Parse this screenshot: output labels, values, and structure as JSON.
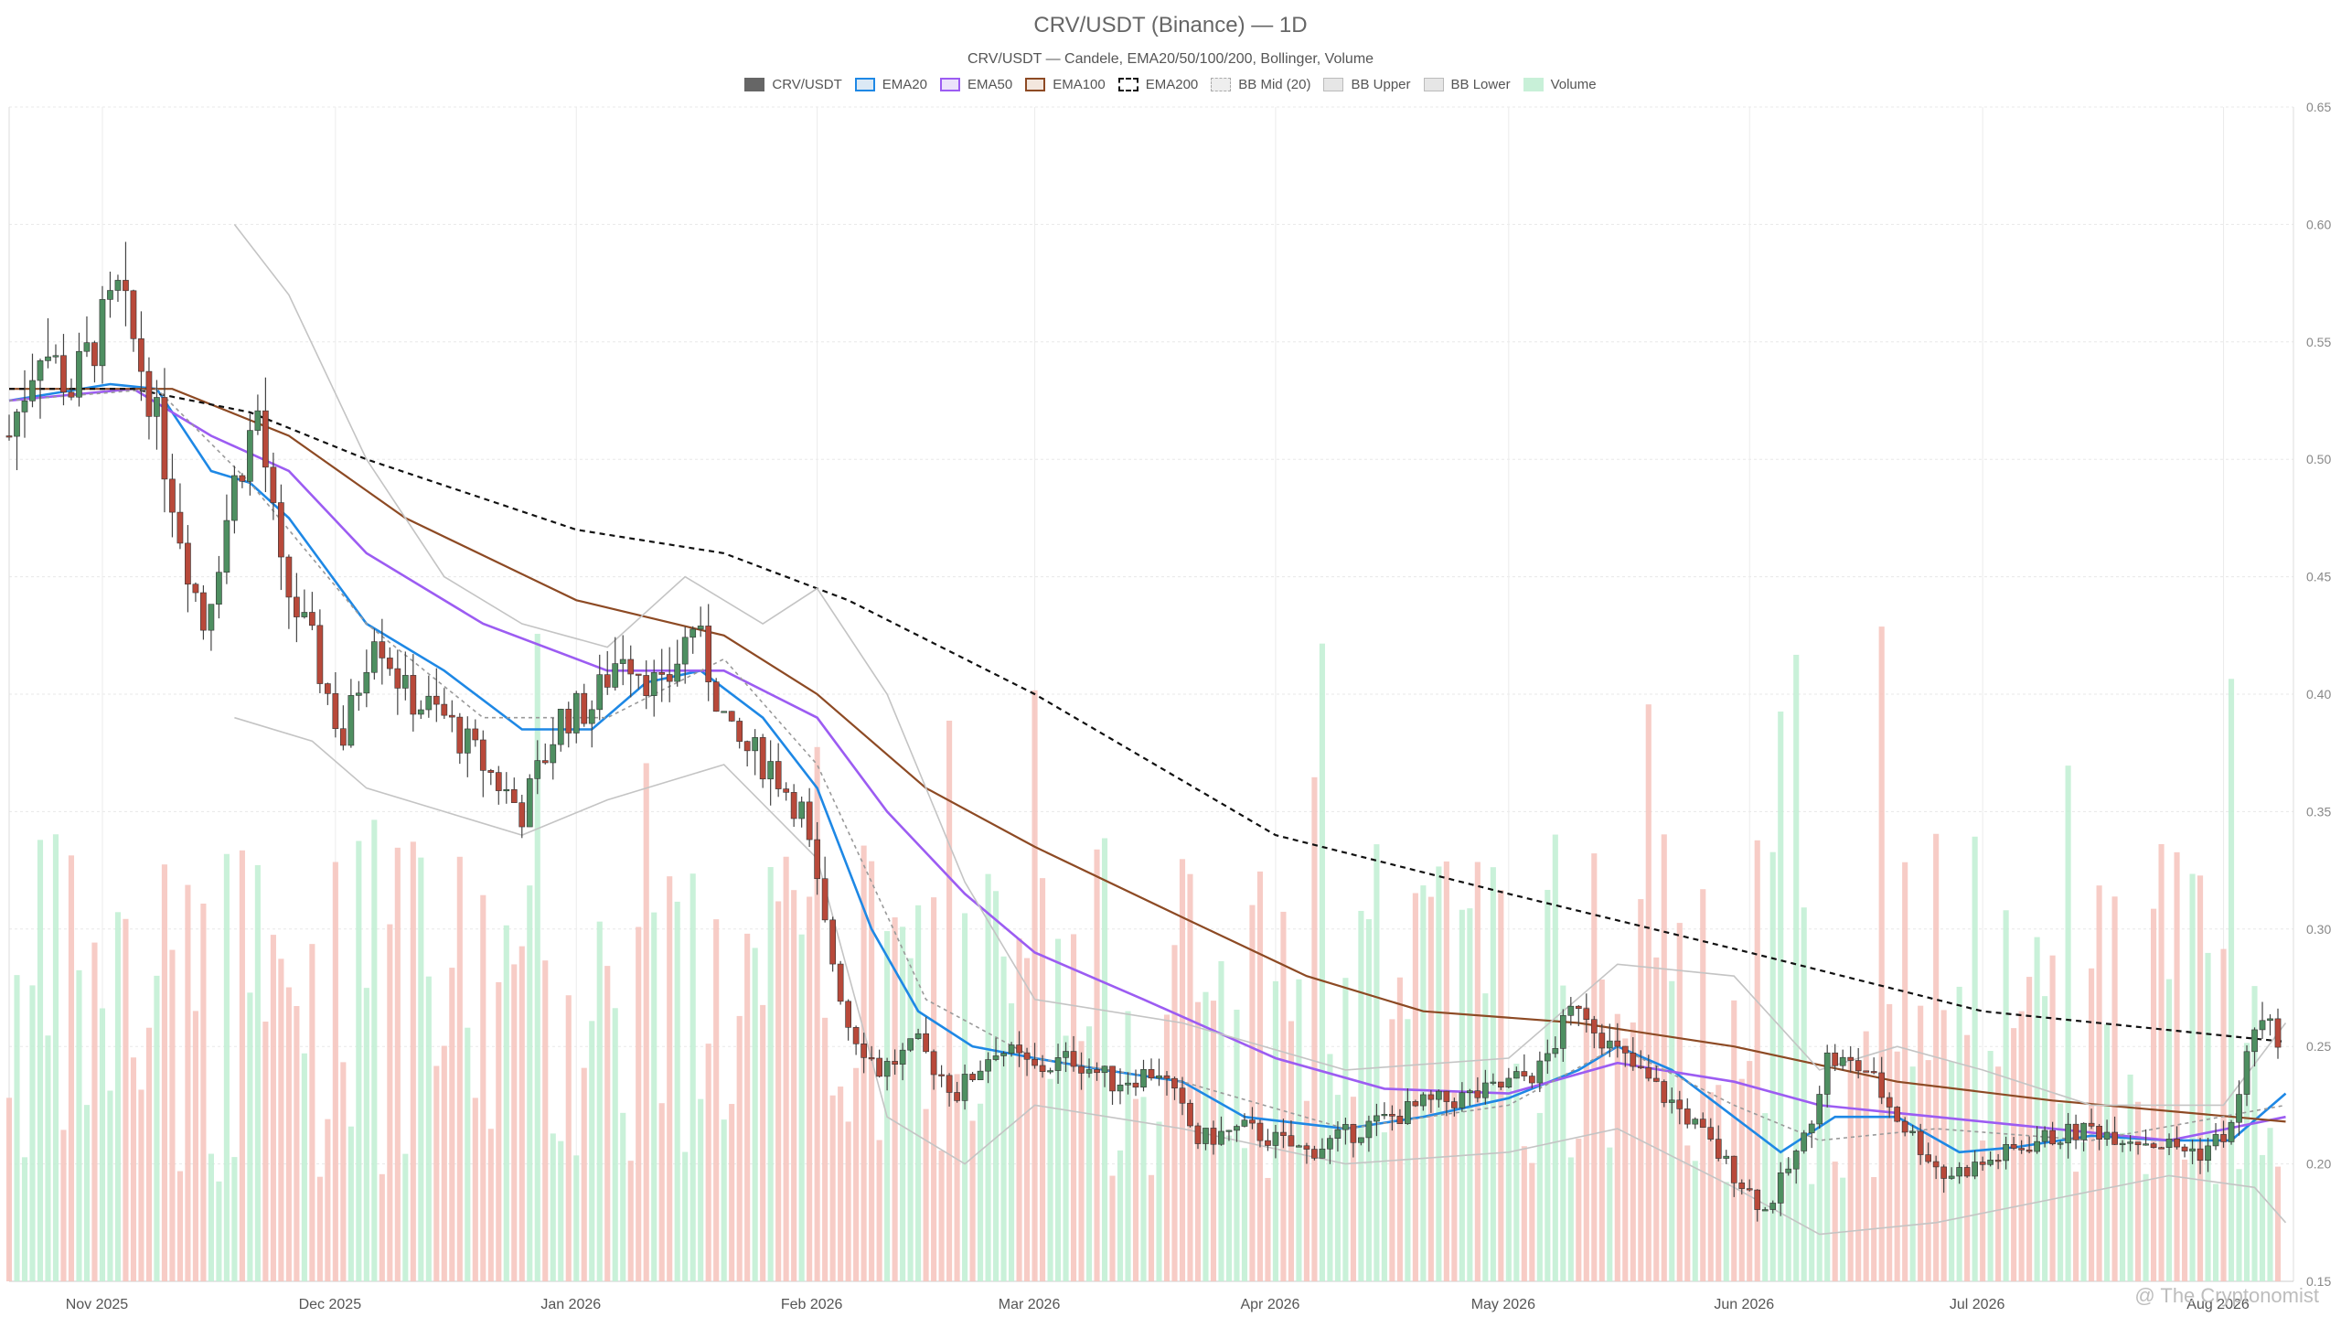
{
  "title": "CRV/USDT (Binance) — 1D",
  "subtitle": "CRV/USDT — Candele, EMA20/50/100/200, Bollinger, Volume",
  "watermark": "@ The Cryptonomist",
  "legend": [
    {
      "label": "CRV/USDT",
      "color": "#666666",
      "style": "solid-fill"
    },
    {
      "label": "EMA20",
      "color": "#1e88e5",
      "style": "outline"
    },
    {
      "label": "EMA50",
      "color": "#9c5cf2",
      "style": "outline"
    },
    {
      "label": "EMA100",
      "color": "#8d4a24",
      "style": "outline"
    },
    {
      "label": "EMA200",
      "color": "#111111",
      "style": "dashed"
    },
    {
      "label": "BB Mid (20)",
      "color": "#aaaaaa",
      "style": "dashed-gray"
    },
    {
      "label": "BB Upper",
      "color": "#bbbbbb",
      "style": "gray"
    },
    {
      "label": "BB Lower",
      "color": "#bbbbbb",
      "style": "gray"
    },
    {
      "label": "Volume",
      "color": "#c8f0d8",
      "style": "green-fill"
    }
  ],
  "chart_data": {
    "type": "candlestick",
    "x_range": [
      "2025-10-20",
      "2026-08-10"
    ],
    "x_ticks": [
      {
        "date": "2025-11-01",
        "label": "Nov 2025"
      },
      {
        "date": "2025-12-01",
        "label": "Dec 2025"
      },
      {
        "date": "2026-01-01",
        "label": "Jan 2026"
      },
      {
        "date": "2026-02-01",
        "label": "Feb 2026"
      },
      {
        "date": "2026-03-01",
        "label": "Mar 2026"
      },
      {
        "date": "2026-04-01",
        "label": "Apr 2026"
      },
      {
        "date": "2026-05-01",
        "label": "May 2026"
      },
      {
        "date": "2026-06-01",
        "label": "Jun 2026"
      },
      {
        "date": "2026-07-01",
        "label": "Jul 2026"
      },
      {
        "date": "2026-08-01",
        "label": "Aug 2026"
      }
    ],
    "ylim": [
      0.15,
      0.65
    ],
    "y_ticks": [
      "0.15",
      "0.20",
      "0.25",
      "0.30",
      "0.35",
      "0.40",
      "0.45",
      "0.50",
      "0.55",
      "0.60",
      "0.65"
    ],
    "y_axis_side": "right",
    "grid": true,
    "colors": {
      "up": "#4e8f61",
      "down": "#b8493a",
      "vol_up": "#bfeed2",
      "vol_down": "#f6c3bc"
    },
    "close_path": [
      [
        "2025-10-20",
        0.51
      ],
      [
        "2025-10-24",
        0.55
      ],
      [
        "2025-10-28",
        0.53
      ],
      [
        "2025-11-03",
        0.57
      ],
      [
        "2025-11-07",
        0.53
      ],
      [
        "2025-11-11",
        0.47
      ],
      [
        "2025-11-14",
        0.43
      ],
      [
        "2025-11-18",
        0.49
      ],
      [
        "2025-11-21",
        0.52
      ],
      [
        "2025-11-24",
        0.45
      ],
      [
        "2025-11-28",
        0.42
      ],
      [
        "2025-12-02",
        0.38
      ],
      [
        "2025-12-06",
        0.43
      ],
      [
        "2025-12-10",
        0.4
      ],
      [
        "2025-12-15",
        0.39
      ],
      [
        "2025-12-20",
        0.37
      ],
      [
        "2025-12-25",
        0.35
      ],
      [
        "2025-12-30",
        0.39
      ],
      [
        "2026-01-03",
        0.395
      ],
      [
        "2026-01-07",
        0.42
      ],
      [
        "2026-01-12",
        0.4
      ],
      [
        "2026-01-16",
        0.43
      ],
      [
        "2026-01-21",
        0.38
      ],
      [
        "2026-01-26",
        0.37
      ],
      [
        "2026-01-30",
        0.35
      ],
      [
        "2026-02-02",
        0.3
      ],
      [
        "2026-02-05",
        0.26
      ],
      [
        "2026-02-09",
        0.24
      ],
      [
        "2026-02-14",
        0.25
      ],
      [
        "2026-02-19",
        0.23
      ],
      [
        "2026-02-24",
        0.25
      ],
      [
        "2026-03-01",
        0.24
      ],
      [
        "2026-03-06",
        0.245
      ],
      [
        "2026-03-11",
        0.235
      ],
      [
        "2026-03-17",
        0.24
      ],
      [
        "2026-03-22",
        0.21
      ],
      [
        "2026-03-28",
        0.215
      ],
      [
        "2026-04-05",
        0.205
      ],
      [
        "2026-04-12",
        0.215
      ],
      [
        "2026-04-20",
        0.225
      ],
      [
        "2026-04-28",
        0.23
      ],
      [
        "2026-05-05",
        0.24
      ],
      [
        "2026-05-10",
        0.27
      ],
      [
        "2026-05-14",
        0.25
      ],
      [
        "2026-05-19",
        0.235
      ],
      [
        "2026-05-24",
        0.22
      ],
      [
        "2026-05-29",
        0.2
      ],
      [
        "2026-06-03",
        0.18
      ],
      [
        "2026-06-08",
        0.21
      ],
      [
        "2026-06-11",
        0.245
      ],
      [
        "2026-06-16",
        0.24
      ],
      [
        "2026-06-20",
        0.22
      ],
      [
        "2026-06-26",
        0.195
      ],
      [
        "2026-07-01",
        0.2
      ],
      [
        "2026-07-08",
        0.21
      ],
      [
        "2026-07-15",
        0.215
      ],
      [
        "2026-07-22",
        0.21
      ],
      [
        "2026-07-29",
        0.205
      ],
      [
        "2026-08-02",
        0.215
      ],
      [
        "2026-08-05",
        0.26
      ],
      [
        "2026-08-08",
        0.255
      ]
    ],
    "series": [
      {
        "name": "EMA20",
        "color": "#1e88e5",
        "width": 2.6,
        "dash": "",
        "points": [
          [
            "2025-10-20",
            0.525
          ],
          [
            "2025-11-02",
            0.532
          ],
          [
            "2025-11-08",
            0.53
          ],
          [
            "2025-11-15",
            0.495
          ],
          [
            "2025-11-20",
            0.49
          ],
          [
            "2025-11-25",
            0.475
          ],
          [
            "2025-12-05",
            0.43
          ],
          [
            "2025-12-15",
            0.41
          ],
          [
            "2025-12-25",
            0.385
          ],
          [
            "2026-01-03",
            0.385
          ],
          [
            "2026-01-10",
            0.405
          ],
          [
            "2026-01-17",
            0.41
          ],
          [
            "2026-01-25",
            0.39
          ],
          [
            "2026-02-01",
            0.36
          ],
          [
            "2026-02-08",
            0.3
          ],
          [
            "2026-02-14",
            0.265
          ],
          [
            "2026-02-21",
            0.25
          ],
          [
            "2026-03-01",
            0.245
          ],
          [
            "2026-03-10",
            0.24
          ],
          [
            "2026-03-20",
            0.235
          ],
          [
            "2026-03-28",
            0.22
          ],
          [
            "2026-04-10",
            0.215
          ],
          [
            "2026-04-20",
            0.22
          ],
          [
            "2026-05-01",
            0.228
          ],
          [
            "2026-05-10",
            0.24
          ],
          [
            "2026-05-15",
            0.25
          ],
          [
            "2026-05-22",
            0.24
          ],
          [
            "2026-05-30",
            0.22
          ],
          [
            "2026-06-05",
            0.205
          ],
          [
            "2026-06-12",
            0.22
          ],
          [
            "2026-06-20",
            0.22
          ],
          [
            "2026-06-28",
            0.205
          ],
          [
            "2026-07-05",
            0.207
          ],
          [
            "2026-07-15",
            0.212
          ],
          [
            "2026-07-25",
            0.21
          ],
          [
            "2026-08-02",
            0.21
          ],
          [
            "2026-08-09",
            0.23
          ]
        ]
      },
      {
        "name": "EMA50",
        "color": "#9c5cf2",
        "width": 2.6,
        "dash": "",
        "points": [
          [
            "2025-10-20",
            0.525
          ],
          [
            "2025-11-05",
            0.53
          ],
          [
            "2025-11-15",
            0.51
          ],
          [
            "2025-11-25",
            0.495
          ],
          [
            "2025-12-05",
            0.46
          ],
          [
            "2025-12-20",
            0.43
          ],
          [
            "2026-01-05",
            0.41
          ],
          [
            "2026-01-20",
            0.41
          ],
          [
            "2026-02-01",
            0.39
          ],
          [
            "2026-02-10",
            0.35
          ],
          [
            "2026-02-20",
            0.315
          ],
          [
            "2026-03-01",
            0.29
          ],
          [
            "2026-03-15",
            0.27
          ],
          [
            "2026-04-01",
            0.245
          ],
          [
            "2026-04-15",
            0.232
          ],
          [
            "2026-05-01",
            0.23
          ],
          [
            "2026-05-15",
            0.243
          ],
          [
            "2026-05-30",
            0.235
          ],
          [
            "2026-06-10",
            0.225
          ],
          [
            "2026-06-25",
            0.22
          ],
          [
            "2026-07-10",
            0.215
          ],
          [
            "2026-07-25",
            0.21
          ],
          [
            "2026-08-09",
            0.22
          ]
        ]
      },
      {
        "name": "EMA100",
        "color": "#8d4a24",
        "width": 2.2,
        "dash": "",
        "points": [
          [
            "2025-10-20",
            0.53
          ],
          [
            "2025-11-10",
            0.53
          ],
          [
            "2025-11-25",
            0.51
          ],
          [
            "2025-12-10",
            0.475
          ],
          [
            "2026-01-01",
            0.44
          ],
          [
            "2026-01-20",
            0.425
          ],
          [
            "2026-02-01",
            0.4
          ],
          [
            "2026-02-15",
            0.36
          ],
          [
            "2026-03-01",
            0.335
          ],
          [
            "2026-03-20",
            0.305
          ],
          [
            "2026-04-05",
            0.28
          ],
          [
            "2026-04-20",
            0.265
          ],
          [
            "2026-05-10",
            0.26
          ],
          [
            "2026-05-30",
            0.25
          ],
          [
            "2026-06-20",
            0.235
          ],
          [
            "2026-07-10",
            0.227
          ],
          [
            "2026-08-09",
            0.218
          ]
        ]
      },
      {
        "name": "EMA200",
        "color": "#111111",
        "width": 2.2,
        "dash": "6,5",
        "points": [
          [
            "2025-10-20",
            0.53
          ],
          [
            "2025-11-05",
            0.53
          ],
          [
            "2025-11-20",
            0.52
          ],
          [
            "2025-12-05",
            0.5
          ],
          [
            "2026-01-01",
            0.47
          ],
          [
            "2026-01-20",
            0.46
          ],
          [
            "2026-02-05",
            0.44
          ],
          [
            "2026-03-01",
            0.4
          ],
          [
            "2026-04-01",
            0.34
          ],
          [
            "2026-05-01",
            0.315
          ],
          [
            "2026-06-01",
            0.29
          ],
          [
            "2026-07-01",
            0.265
          ],
          [
            "2026-08-09",
            0.252
          ]
        ]
      },
      {
        "name": "BB Mid (20)",
        "color": "#999999",
        "width": 1.6,
        "dash": "4,4",
        "points": [
          [
            "2025-10-20",
            0.525
          ],
          [
            "2025-11-08",
            0.53
          ],
          [
            "2025-11-20",
            0.49
          ],
          [
            "2025-12-05",
            0.43
          ],
          [
            "2025-12-20",
            0.39
          ],
          [
            "2026-01-05",
            0.39
          ],
          [
            "2026-01-20",
            0.415
          ],
          [
            "2026-02-01",
            0.37
          ],
          [
            "2026-02-15",
            0.27
          ],
          [
            "2026-03-01",
            0.245
          ],
          [
            "2026-03-20",
            0.235
          ],
          [
            "2026-04-10",
            0.215
          ],
          [
            "2026-05-01",
            0.225
          ],
          [
            "2026-05-15",
            0.25
          ],
          [
            "2026-05-30",
            0.225
          ],
          [
            "2026-06-10",
            0.21
          ],
          [
            "2026-06-25",
            0.215
          ],
          [
            "2026-07-15",
            0.21
          ],
          [
            "2026-08-09",
            0.225
          ]
        ]
      },
      {
        "name": "BB Upper",
        "color": "#c4c4c4",
        "width": 1.6,
        "dash": "",
        "points": [
          [
            "2025-11-18",
            0.6
          ],
          [
            "2025-11-25",
            0.57
          ],
          [
            "2025-12-05",
            0.5
          ],
          [
            "2025-12-15",
            0.45
          ],
          [
            "2025-12-25",
            0.43
          ],
          [
            "2026-01-05",
            0.42
          ],
          [
            "2026-01-15",
            0.45
          ],
          [
            "2026-01-25",
            0.43
          ],
          [
            "2026-02-01",
            0.445
          ],
          [
            "2026-02-10",
            0.4
          ],
          [
            "2026-02-20",
            0.32
          ],
          [
            "2026-03-01",
            0.27
          ],
          [
            "2026-03-20",
            0.26
          ],
          [
            "2026-04-10",
            0.24
          ],
          [
            "2026-05-01",
            0.245
          ],
          [
            "2026-05-15",
            0.285
          ],
          [
            "2026-05-30",
            0.28
          ],
          [
            "2026-06-10",
            0.24
          ],
          [
            "2026-06-20",
            0.25
          ],
          [
            "2026-07-01",
            0.24
          ],
          [
            "2026-07-15",
            0.225
          ],
          [
            "2026-08-01",
            0.225
          ],
          [
            "2026-08-09",
            0.26
          ]
        ]
      },
      {
        "name": "BB Lower",
        "color": "#c4c4c4",
        "width": 1.6,
        "dash": "",
        "points": [
          [
            "2025-11-18",
            0.39
          ],
          [
            "2025-11-28",
            0.38
          ],
          [
            "2025-12-05",
            0.36
          ],
          [
            "2025-12-15",
            0.35
          ],
          [
            "2025-12-25",
            0.34
          ],
          [
            "2026-01-05",
            0.355
          ],
          [
            "2026-01-20",
            0.37
          ],
          [
            "2026-02-01",
            0.33
          ],
          [
            "2026-02-10",
            0.22
          ],
          [
            "2026-02-20",
            0.2
          ],
          [
            "2026-03-01",
            0.225
          ],
          [
            "2026-03-20",
            0.215
          ],
          [
            "2026-04-10",
            0.2
          ],
          [
            "2026-05-01",
            0.205
          ],
          [
            "2026-05-15",
            0.215
          ],
          [
            "2026-05-30",
            0.19
          ],
          [
            "2026-06-10",
            0.17
          ],
          [
            "2026-06-25",
            0.175
          ],
          [
            "2026-07-10",
            0.185
          ],
          [
            "2026-07-25",
            0.195
          ],
          [
            "2026-08-05",
            0.19
          ],
          [
            "2026-08-09",
            0.175
          ]
        ]
      }
    ]
  }
}
